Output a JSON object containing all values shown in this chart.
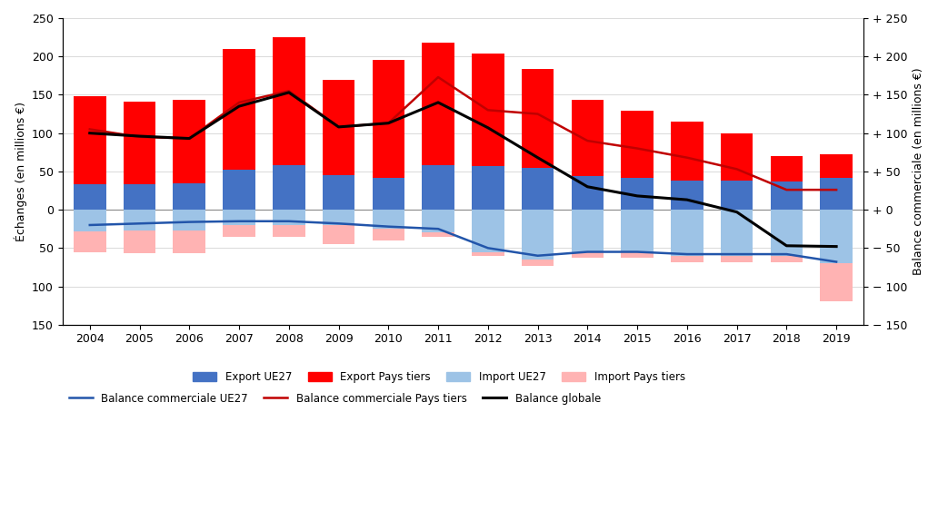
{
  "years": [
    2004,
    2005,
    2006,
    2007,
    2008,
    2009,
    2010,
    2011,
    2012,
    2013,
    2014,
    2015,
    2016,
    2017,
    2018,
    2019
  ],
  "export_ue27": [
    33,
    33,
    35,
    52,
    58,
    45,
    42,
    58,
    57,
    54,
    44,
    41,
    38,
    38,
    37,
    42
  ],
  "export_pays_tiers": [
    115,
    108,
    108,
    158,
    167,
    125,
    153,
    160,
    147,
    130,
    100,
    88,
    77,
    62,
    33,
    30
  ],
  "import_ue27": [
    -28,
    -27,
    -27,
    -20,
    -20,
    -20,
    -25,
    -30,
    -55,
    -65,
    -55,
    -55,
    -60,
    -60,
    -60,
    -70
  ],
  "import_pays_tiers": [
    -28,
    -30,
    -30,
    -15,
    -15,
    -25,
    -15,
    -5,
    -5,
    -8,
    -8,
    -8,
    -8,
    -8,
    -8,
    -50
  ],
  "balance_ue27": [
    -20,
    -18,
    -16,
    -15,
    -15,
    -18,
    -22,
    -25,
    -50,
    -60,
    -55,
    -55,
    -58,
    -58,
    -58,
    -68
  ],
  "balance_pays_tiers": [
    105,
    95,
    93,
    140,
    155,
    108,
    113,
    173,
    130,
    125,
    90,
    80,
    68,
    53,
    26,
    26
  ],
  "balance_globale": [
    100,
    96,
    93,
    135,
    153,
    108,
    113,
    140,
    107,
    68,
    30,
    18,
    13,
    -3,
    -47,
    -48
  ],
  "ylabel_left": "Échanges (en millions €)",
  "ylabel_right": "Balance commerciale (en millions €)",
  "color_export_ue27": "#4472C4",
  "color_export_pays_tiers": "#FF0000",
  "color_import_ue27": "#9DC3E6",
  "color_import_pays_tiers": "#FFB3B3",
  "color_balance_ue27": "#2255AA",
  "color_balance_pays_tiers": "#C00000",
  "color_balance_globale": "#000000",
  "ylim": [
    -150,
    250
  ],
  "yticks": [
    -150,
    -100,
    -50,
    0,
    50,
    100,
    150,
    200,
    250
  ],
  "ytick_labels_left": [
    "150",
    "100",
    "50",
    "0",
    "50",
    "100",
    "150",
    "200",
    "250"
  ],
  "ytick_labels_right": [
    "− 150",
    "− 100",
    "− 50",
    "+ 0",
    "+ 50",
    "+ 100",
    "+ 150",
    "+ 200",
    "+ 250"
  ]
}
